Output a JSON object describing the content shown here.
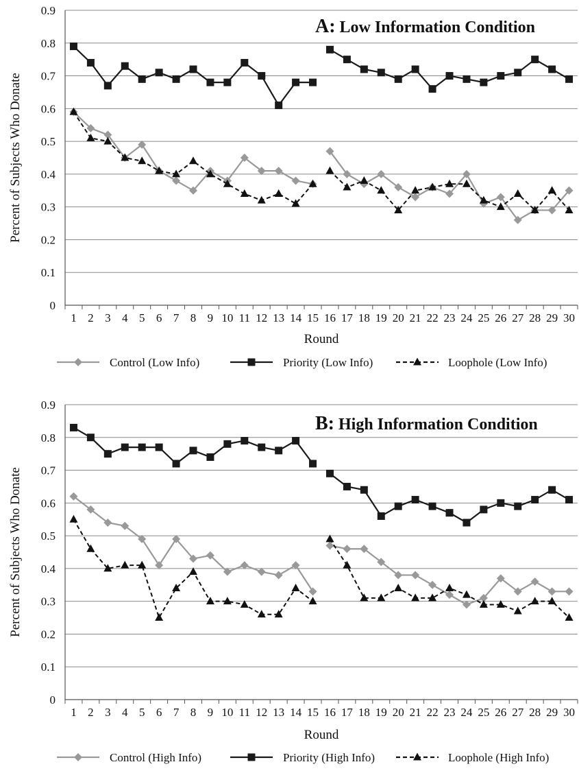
{
  "chart_data": [
    {
      "type": "line",
      "panel_label": "A:",
      "title": "Low Information Condition",
      "xlabel": "Round",
      "ylabel": "Percent of Subjects Who Donate",
      "x": [
        1,
        2,
        3,
        4,
        5,
        6,
        7,
        8,
        9,
        10,
        11,
        12,
        13,
        14,
        15,
        16,
        17,
        18,
        19,
        20,
        21,
        22,
        23,
        24,
        25,
        26,
        27,
        28,
        29,
        30
      ],
      "ylim": [
        0,
        0.9
      ],
      "yticks": [
        "0",
        "0.1",
        "0.2",
        "0.3",
        "0.4",
        "0.5",
        "0.6",
        "0.7",
        "0.8",
        "0.9"
      ],
      "grid": true,
      "legend_position": "bottom",
      "series": [
        {
          "name": "Control (Low Info)",
          "color": "#999999",
          "marker": "diamond",
          "dash": "solid",
          "values": [
            0.59,
            0.54,
            0.52,
            0.45,
            0.49,
            0.41,
            0.38,
            0.35,
            0.41,
            0.38,
            0.45,
            0.41,
            0.41,
            0.38,
            0.37,
            0.47,
            0.4,
            0.37,
            0.4,
            0.36,
            0.33,
            0.36,
            0.34,
            0.4,
            0.31,
            0.33,
            0.26,
            0.29,
            0.29,
            0.35
          ]
        },
        {
          "name": "Priority (Low Info)",
          "color": "#1a1a1a",
          "marker": "square",
          "dash": "solid",
          "values": [
            0.79,
            0.74,
            0.67,
            0.73,
            0.69,
            0.71,
            0.69,
            0.72,
            0.68,
            0.68,
            0.74,
            0.7,
            0.61,
            0.68,
            0.68,
            0.78,
            0.75,
            0.72,
            0.71,
            0.69,
            0.72,
            0.66,
            0.7,
            0.69,
            0.68,
            0.7,
            0.71,
            0.75,
            0.72,
            0.69
          ]
        },
        {
          "name": "Loophole (Low Info)",
          "color": "#111111",
          "marker": "triangle",
          "dash": "dashed",
          "values": [
            0.59,
            0.51,
            0.5,
            0.45,
            0.44,
            0.41,
            0.4,
            0.44,
            0.4,
            0.37,
            0.34,
            0.32,
            0.34,
            0.31,
            0.37,
            0.41,
            0.36,
            0.38,
            0.35,
            0.29,
            0.35,
            0.36,
            0.37,
            0.37,
            0.32,
            0.3,
            0.34,
            0.29,
            0.35,
            0.29
          ]
        }
      ]
    },
    {
      "type": "line",
      "panel_label": "B:",
      "title": "High Information Condition",
      "xlabel": "Round",
      "ylabel": "Percent of Subjects Who Donate",
      "x": [
        1,
        2,
        3,
        4,
        5,
        6,
        7,
        8,
        9,
        10,
        11,
        12,
        13,
        14,
        15,
        16,
        17,
        18,
        19,
        20,
        21,
        22,
        23,
        24,
        25,
        26,
        27,
        28,
        29,
        30
      ],
      "ylim": [
        0,
        0.9
      ],
      "yticks": [
        "0",
        "0.1",
        "0.2",
        "0.3",
        "0.4",
        "0.5",
        "0.6",
        "0.7",
        "0.8",
        "0.9"
      ],
      "grid": true,
      "legend_position": "bottom",
      "series": [
        {
          "name": "Control (High Info)",
          "color": "#999999",
          "marker": "diamond",
          "dash": "solid",
          "values": [
            0.62,
            0.58,
            0.54,
            0.53,
            0.49,
            0.41,
            0.49,
            0.43,
            0.44,
            0.39,
            0.41,
            0.39,
            0.38,
            0.41,
            0.33,
            0.47,
            0.46,
            0.46,
            0.42,
            0.38,
            0.38,
            0.35,
            0.32,
            0.29,
            0.31,
            0.37,
            0.33,
            0.36,
            0.33,
            0.33
          ]
        },
        {
          "name": "Priority (High Info)",
          "color": "#1a1a1a",
          "marker": "square",
          "dash": "solid",
          "values": [
            0.83,
            0.8,
            0.75,
            0.77,
            0.77,
            0.77,
            0.72,
            0.76,
            0.74,
            0.78,
            0.79,
            0.77,
            0.76,
            0.79,
            0.72,
            0.69,
            0.65,
            0.64,
            0.56,
            0.59,
            0.61,
            0.59,
            0.57,
            0.54,
            0.58,
            0.6,
            0.59,
            0.61,
            0.64,
            0.61
          ]
        },
        {
          "name": "Loophole (High Info)",
          "color": "#111111",
          "marker": "triangle",
          "dash": "dashed",
          "values": [
            0.55,
            0.46,
            0.4,
            0.41,
            0.41,
            0.25,
            0.34,
            0.39,
            0.3,
            0.3,
            0.29,
            0.26,
            0.26,
            0.34,
            0.3,
            0.49,
            0.41,
            0.31,
            0.31,
            0.34,
            0.31,
            0.31,
            0.34,
            0.32,
            0.29,
            0.29,
            0.27,
            0.3,
            0.3,
            0.25
          ]
        }
      ]
    }
  ]
}
